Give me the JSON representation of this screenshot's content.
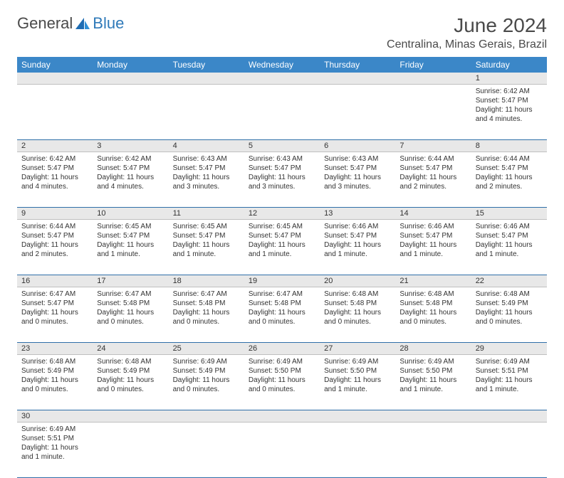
{
  "logo": {
    "general": "General",
    "blue": "Blue"
  },
  "title": "June 2024",
  "location": "Centralina, Minas Gerais, Brazil",
  "colors": {
    "header_bg": "#3b87c8",
    "header_text": "#ffffff",
    "daynum_bg": "#e8e8e8",
    "row_border": "#2f6fa8",
    "logo_blue": "#2f7ab9",
    "text": "#4a4a4a"
  },
  "weekdays": [
    "Sunday",
    "Monday",
    "Tuesday",
    "Wednesday",
    "Thursday",
    "Friday",
    "Saturday"
  ],
  "first_weekday_index": 6,
  "days": [
    {
      "n": 1,
      "sunrise": "6:42 AM",
      "sunset": "5:47 PM",
      "daylight": "11 hours and 4 minutes."
    },
    {
      "n": 2,
      "sunrise": "6:42 AM",
      "sunset": "5:47 PM",
      "daylight": "11 hours and 4 minutes."
    },
    {
      "n": 3,
      "sunrise": "6:42 AM",
      "sunset": "5:47 PM",
      "daylight": "11 hours and 4 minutes."
    },
    {
      "n": 4,
      "sunrise": "6:43 AM",
      "sunset": "5:47 PM",
      "daylight": "11 hours and 3 minutes."
    },
    {
      "n": 5,
      "sunrise": "6:43 AM",
      "sunset": "5:47 PM",
      "daylight": "11 hours and 3 minutes."
    },
    {
      "n": 6,
      "sunrise": "6:43 AM",
      "sunset": "5:47 PM",
      "daylight": "11 hours and 3 minutes."
    },
    {
      "n": 7,
      "sunrise": "6:44 AM",
      "sunset": "5:47 PM",
      "daylight": "11 hours and 2 minutes."
    },
    {
      "n": 8,
      "sunrise": "6:44 AM",
      "sunset": "5:47 PM",
      "daylight": "11 hours and 2 minutes."
    },
    {
      "n": 9,
      "sunrise": "6:44 AM",
      "sunset": "5:47 PM",
      "daylight": "11 hours and 2 minutes."
    },
    {
      "n": 10,
      "sunrise": "6:45 AM",
      "sunset": "5:47 PM",
      "daylight": "11 hours and 1 minute."
    },
    {
      "n": 11,
      "sunrise": "6:45 AM",
      "sunset": "5:47 PM",
      "daylight": "11 hours and 1 minute."
    },
    {
      "n": 12,
      "sunrise": "6:45 AM",
      "sunset": "5:47 PM",
      "daylight": "11 hours and 1 minute."
    },
    {
      "n": 13,
      "sunrise": "6:46 AM",
      "sunset": "5:47 PM",
      "daylight": "11 hours and 1 minute."
    },
    {
      "n": 14,
      "sunrise": "6:46 AM",
      "sunset": "5:47 PM",
      "daylight": "11 hours and 1 minute."
    },
    {
      "n": 15,
      "sunrise": "6:46 AM",
      "sunset": "5:47 PM",
      "daylight": "11 hours and 1 minute."
    },
    {
      "n": 16,
      "sunrise": "6:47 AM",
      "sunset": "5:47 PM",
      "daylight": "11 hours and 0 minutes."
    },
    {
      "n": 17,
      "sunrise": "6:47 AM",
      "sunset": "5:48 PM",
      "daylight": "11 hours and 0 minutes."
    },
    {
      "n": 18,
      "sunrise": "6:47 AM",
      "sunset": "5:48 PM",
      "daylight": "11 hours and 0 minutes."
    },
    {
      "n": 19,
      "sunrise": "6:47 AM",
      "sunset": "5:48 PM",
      "daylight": "11 hours and 0 minutes."
    },
    {
      "n": 20,
      "sunrise": "6:48 AM",
      "sunset": "5:48 PM",
      "daylight": "11 hours and 0 minutes."
    },
    {
      "n": 21,
      "sunrise": "6:48 AM",
      "sunset": "5:48 PM",
      "daylight": "11 hours and 0 minutes."
    },
    {
      "n": 22,
      "sunrise": "6:48 AM",
      "sunset": "5:49 PM",
      "daylight": "11 hours and 0 minutes."
    },
    {
      "n": 23,
      "sunrise": "6:48 AM",
      "sunset": "5:49 PM",
      "daylight": "11 hours and 0 minutes."
    },
    {
      "n": 24,
      "sunrise": "6:48 AM",
      "sunset": "5:49 PM",
      "daylight": "11 hours and 0 minutes."
    },
    {
      "n": 25,
      "sunrise": "6:49 AM",
      "sunset": "5:49 PM",
      "daylight": "11 hours and 0 minutes."
    },
    {
      "n": 26,
      "sunrise": "6:49 AM",
      "sunset": "5:50 PM",
      "daylight": "11 hours and 0 minutes."
    },
    {
      "n": 27,
      "sunrise": "6:49 AM",
      "sunset": "5:50 PM",
      "daylight": "11 hours and 1 minute."
    },
    {
      "n": 28,
      "sunrise": "6:49 AM",
      "sunset": "5:50 PM",
      "daylight": "11 hours and 1 minute."
    },
    {
      "n": 29,
      "sunrise": "6:49 AM",
      "sunset": "5:51 PM",
      "daylight": "11 hours and 1 minute."
    },
    {
      "n": 30,
      "sunrise": "6:49 AM",
      "sunset": "5:51 PM",
      "daylight": "11 hours and 1 minute."
    }
  ],
  "labels": {
    "sunrise": "Sunrise:",
    "sunset": "Sunset:",
    "daylight": "Daylight:"
  }
}
